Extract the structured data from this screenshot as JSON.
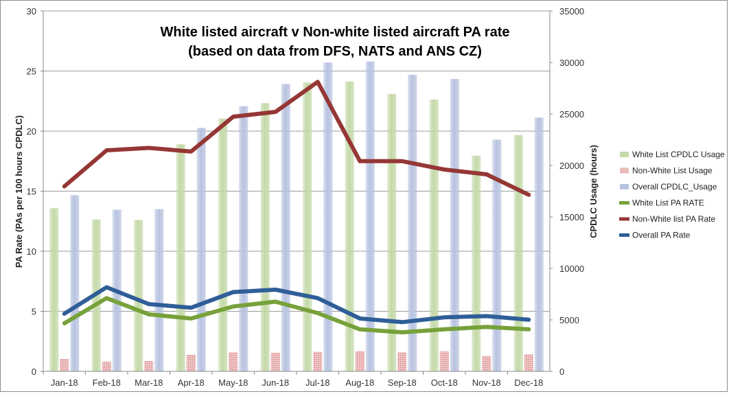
{
  "chart_data": {
    "type": "bar+line",
    "title_lines": [
      "White listed aircraft v Non-white listed aircraft PA rate",
      "(based on data from DFS, NATS and ANS CZ)"
    ],
    "xlabel": "",
    "ylabel_left": "PA Rate (PAs per 100 hours CPDLC)",
    "ylabel_right": "CPDLC Usage (hours)",
    "categories": [
      "Jan-18",
      "Feb-18",
      "Mar-18",
      "Apr-18",
      "May-18",
      "Jun-18",
      "Jul-18",
      "Aug-18",
      "Sep-18",
      "Oct-18",
      "Nov-18",
      "Dec-18"
    ],
    "left_axis": {
      "min": 0,
      "max": 30,
      "ticks": [
        "0",
        "5",
        "10",
        "15",
        "20",
        "25",
        "30"
      ]
    },
    "right_axis": {
      "min": 0,
      "max": 35000,
      "ticks": [
        "0",
        "5000",
        "10000",
        "15000",
        "20000",
        "25000",
        "30000",
        "35000"
      ]
    },
    "grid": "horizontal",
    "legend_position": "right",
    "bar_series": [
      {
        "name": "White List CPDLC Usage",
        "color": "#c4d9a8",
        "values": [
          15850,
          14750,
          14700,
          22050,
          24550,
          26050,
          28050,
          28150,
          26950,
          26400,
          20950,
          22950
        ]
      },
      {
        "name": "Non-White List Usage",
        "color": "#e6a6a6",
        "values": [
          1200,
          950,
          1000,
          1600,
          1850,
          1800,
          1900,
          1950,
          1850,
          1950,
          1500,
          1650
        ]
      },
      {
        "name": "Overall CPDLC_Usage",
        "color": "#b7c3e0",
        "values": [
          17100,
          15700,
          15750,
          23650,
          25750,
          27900,
          30000,
          30100,
          28800,
          28400,
          22500,
          24650
        ]
      }
    ],
    "line_series": [
      {
        "name": "White List PA RATE",
        "color": "#77a13a",
        "values": [
          4.0,
          6.1,
          4.75,
          4.4,
          5.4,
          5.8,
          4.85,
          3.5,
          3.25,
          3.5,
          3.7,
          3.5
        ]
      },
      {
        "name": "Non-White list PA Rate",
        "color": "#953735",
        "values": [
          15.4,
          18.4,
          18.6,
          18.3,
          21.2,
          21.6,
          24.1,
          17.5,
          17.5,
          16.8,
          16.4,
          14.7
        ]
      },
      {
        "name": "Overall PA Rate",
        "color": "#2f5e98",
        "values": [
          4.8,
          7.0,
          5.6,
          5.3,
          6.6,
          6.8,
          6.1,
          4.4,
          4.1,
          4.5,
          4.6,
          4.3
        ]
      }
    ]
  }
}
